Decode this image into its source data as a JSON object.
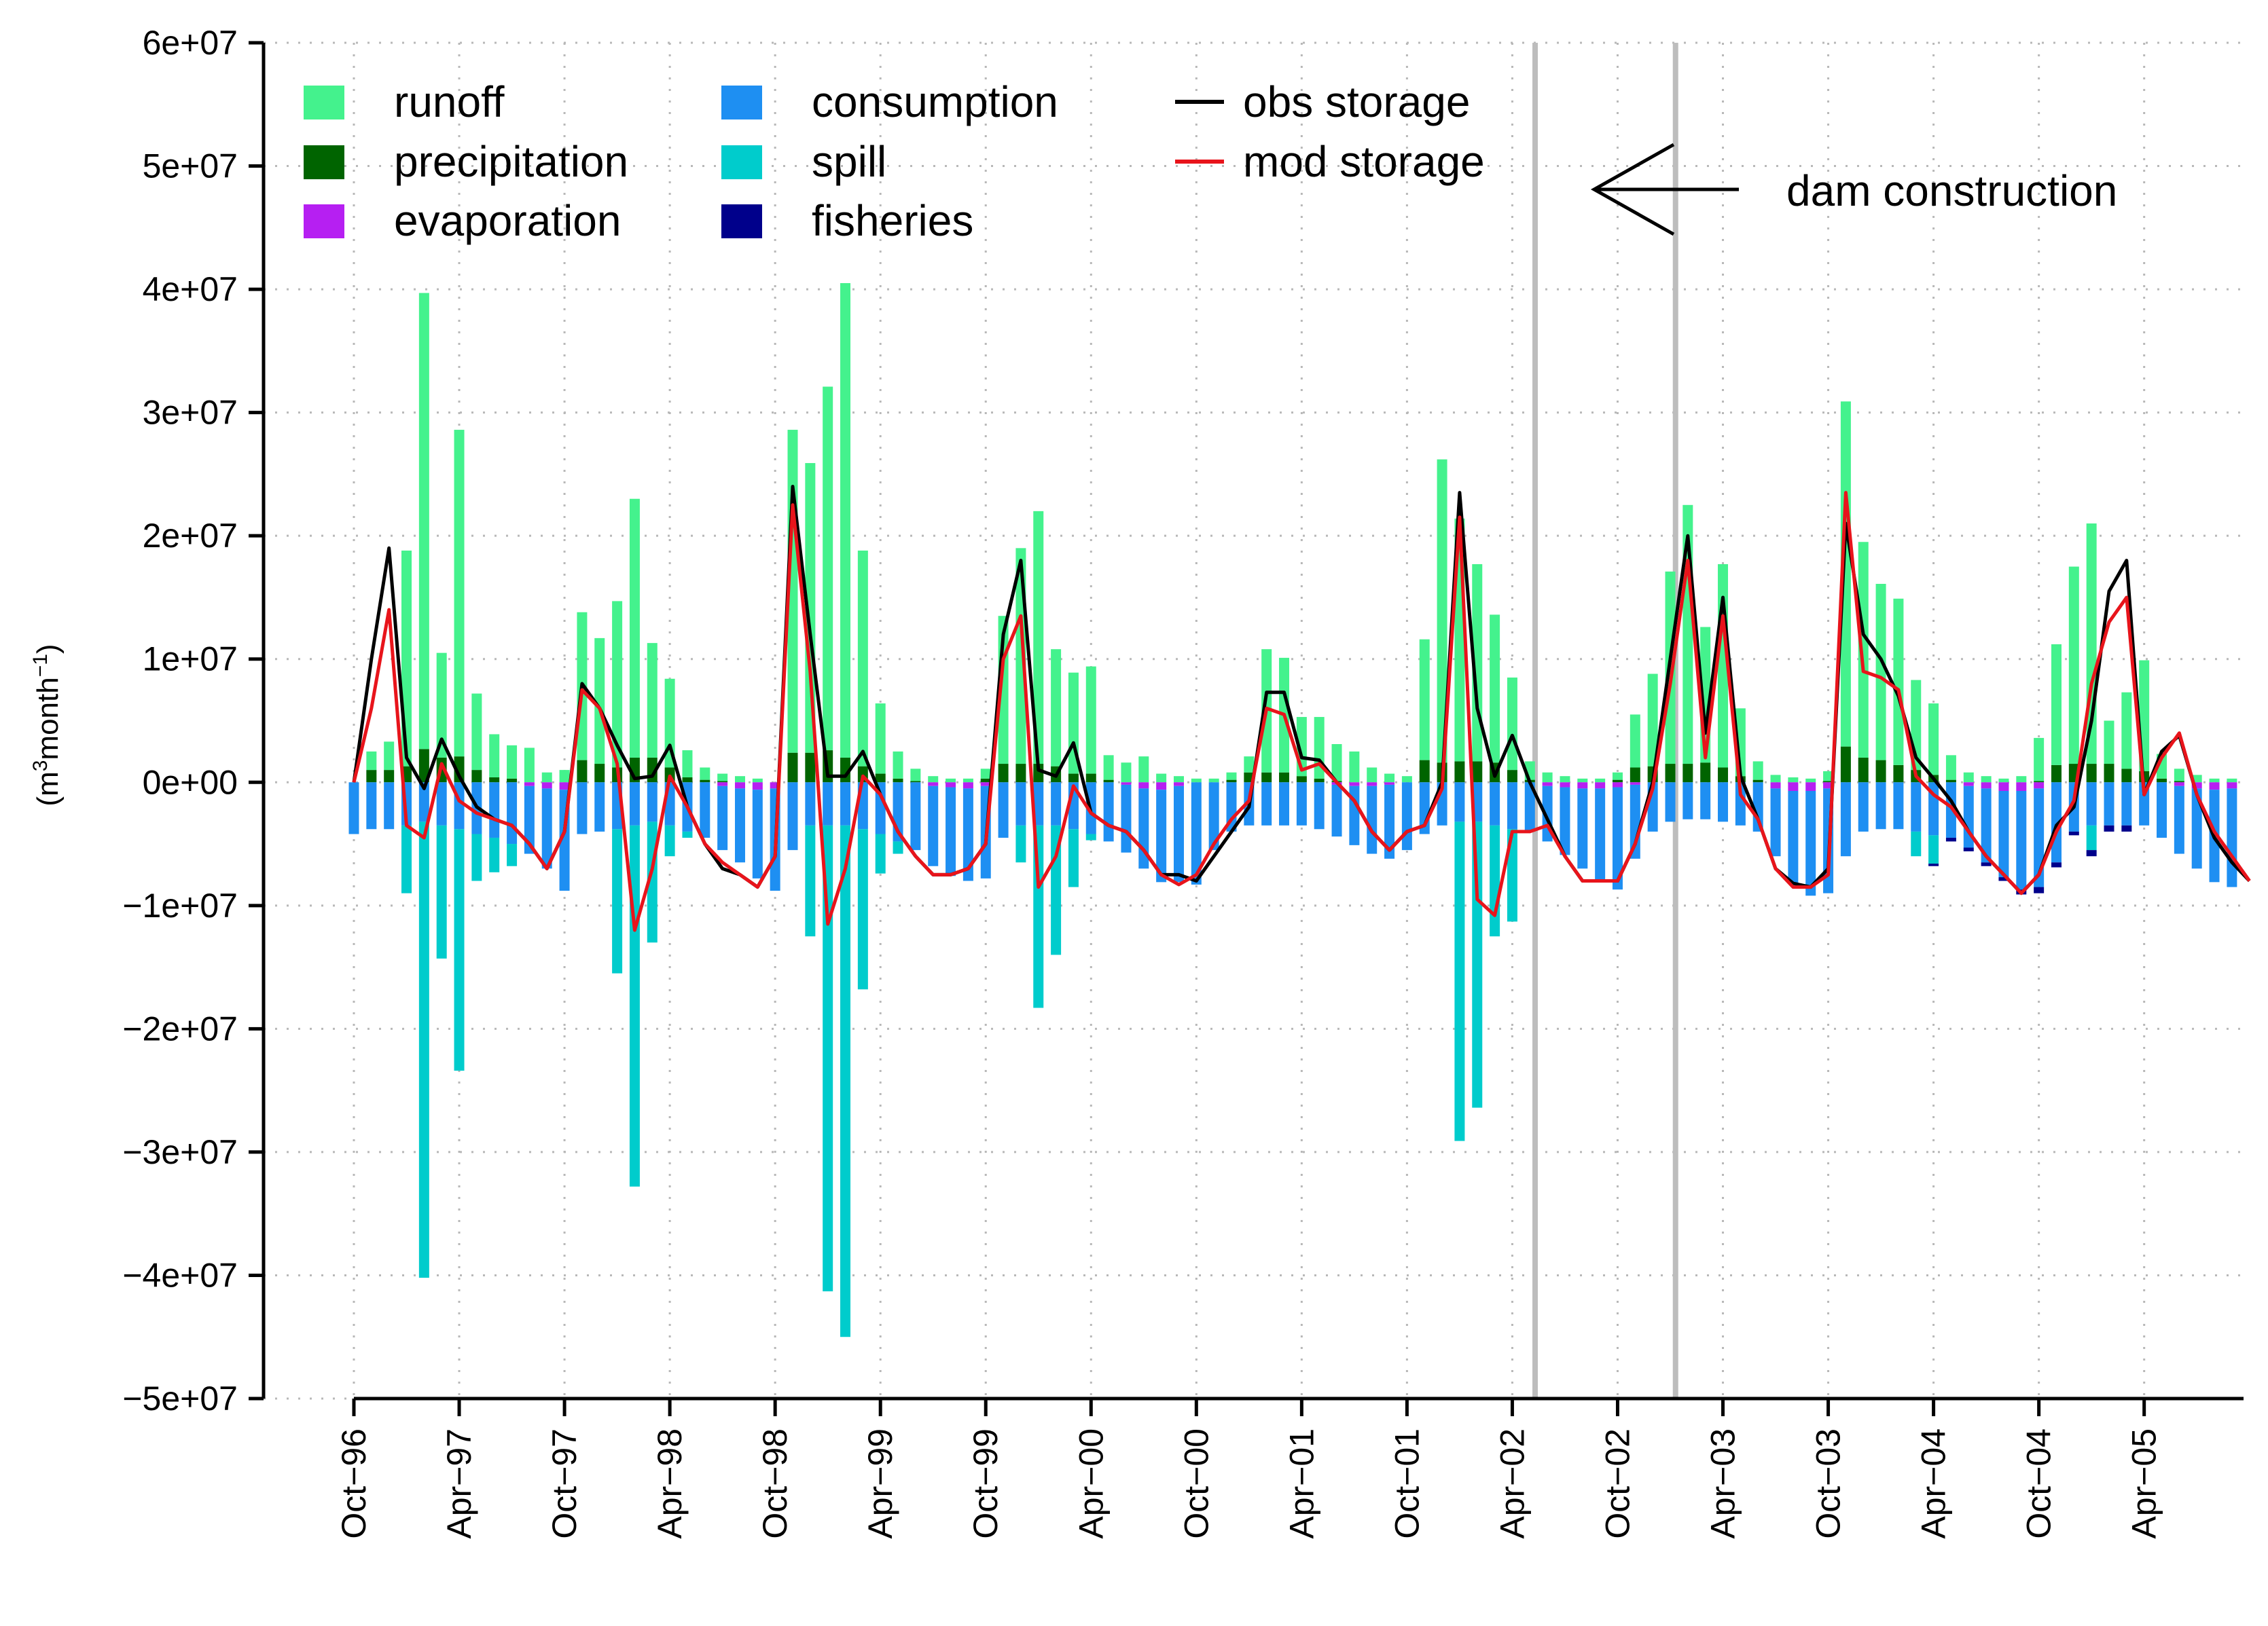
{
  "chart_data": {
    "type": "bar",
    "subtype": "stacked-bar-with-lines",
    "ylabel": "(m³month⁻¹)",
    "ylabel_parts": {
      "open": "(m",
      "sup1": "3",
      "mid": "month",
      "sup2": "−1",
      "close": ")"
    },
    "ylim": [
      -50000000,
      60000000
    ],
    "yticks": [
      {
        "value": 60000000,
        "label": "6e+07"
      },
      {
        "value": 50000000,
        "label": "5e+07"
      },
      {
        "value": 40000000,
        "label": "4e+07"
      },
      {
        "value": 30000000,
        "label": "3e+07"
      },
      {
        "value": 20000000,
        "label": "2e+07"
      },
      {
        "value": 10000000,
        "label": "1e+07"
      },
      {
        "value": 0,
        "label": "0e+00"
      },
      {
        "value": -10000000,
        "label": "−1e+07"
      },
      {
        "value": -20000000,
        "label": "−2e+07"
      },
      {
        "value": -30000000,
        "label": "−3e+07"
      },
      {
        "value": -40000000,
        "label": "−4e+07"
      },
      {
        "value": -50000000,
        "label": "−5e+07"
      }
    ],
    "xticks": [
      {
        "index": 0,
        "label": "Oct−96"
      },
      {
        "index": 6,
        "label": "Apr−97"
      },
      {
        "index": 12,
        "label": "Oct−97"
      },
      {
        "index": 18,
        "label": "Apr−98"
      },
      {
        "index": 24,
        "label": "Oct−98"
      },
      {
        "index": 30,
        "label": "Apr−99"
      },
      {
        "index": 36,
        "label": "Oct−99"
      },
      {
        "index": 42,
        "label": "Apr−00"
      },
      {
        "index": 48,
        "label": "Oct−00"
      },
      {
        "index": 54,
        "label": "Apr−01"
      },
      {
        "index": 60,
        "label": "Oct−01"
      },
      {
        "index": 66,
        "label": "Apr−02"
      },
      {
        "index": 72,
        "label": "Oct−02"
      },
      {
        "index": 78,
        "label": "Apr−03"
      },
      {
        "index": 84,
        "label": "Oct−03"
      },
      {
        "index": 90,
        "label": "Apr−04"
      },
      {
        "index": 96,
        "label": "Oct−04"
      },
      {
        "index": 102,
        "label": "Apr−05"
      }
    ],
    "x_index_range": [
      0,
      107
    ],
    "grid": true,
    "legend_position": "top-left",
    "legend": [
      {
        "name": "runoff",
        "color": "#44F28D",
        "kind": "box"
      },
      {
        "name": "precipitation",
        "color": "#006400",
        "kind": "box"
      },
      {
        "name": "evaporation",
        "color": "#B61FF2",
        "kind": "box"
      },
      {
        "name": "consumption",
        "color": "#1E8FF2",
        "kind": "box"
      },
      {
        "name": "spill",
        "color": "#00CCCC",
        "kind": "box"
      },
      {
        "name": "fisheries",
        "color": "#00008B",
        "kind": "box"
      },
      {
        "name": "obs storage",
        "color": "#000000",
        "kind": "line"
      },
      {
        "name": "mod storage",
        "color": "#E8141B",
        "kind": "line"
      }
    ],
    "annotation": {
      "text": "dam construction",
      "marker_indices": [
        67,
        75
      ]
    },
    "series": [
      {
        "name": "runoff",
        "values": [
          0,
          1.5,
          2.3,
          17.5,
          37,
          8.5,
          26.5,
          6.2,
          3.5,
          2.7,
          2.8,
          0.8,
          1,
          12,
          10.2,
          13.5,
          21,
          9.3,
          7.2,
          2.2,
          1,
          0.6,
          0.5,
          0.3,
          0,
          26.2,
          23.5,
          29.5,
          38.5,
          17.5,
          5.7,
          2.2,
          1,
          0.5,
          0.3,
          0.3,
          0.8,
          12,
          17.5,
          20.5,
          9.5,
          8.2,
          8.7,
          2,
          1.6,
          2.1,
          0.7,
          0.5,
          0.3,
          0.3,
          0.6,
          1.3,
          10,
          9.3,
          4.8,
          5,
          3,
          2.5,
          1.2,
          0.7,
          0.5,
          9.8,
          24.6,
          19.7,
          16,
          12,
          7.5,
          1.5,
          0.8,
          0.5,
          0.3,
          0.3,
          0.6,
          4.3,
          7.5,
          15.6,
          21,
          11,
          16.5,
          5.5,
          1.5,
          0.6,
          0.4,
          0.3,
          0.8,
          28,
          17.5,
          14.3,
          13.5,
          7.3,
          5.8,
          2,
          0.8,
          0.5,
          0.3,
          0.5,
          3.5,
          9.8,
          16,
          19.5,
          3.5,
          6.2,
          9,
          2,
          1,
          0.6,
          0.3,
          0.3
        ]
      },
      {
        "name": "precipitation",
        "values": [
          0,
          1,
          1,
          1.3,
          2.7,
          2,
          2.1,
          1,
          0.4,
          0.3,
          0,
          0,
          0,
          1.8,
          1.5,
          1.2,
          2,
          2,
          1.2,
          0.4,
          0.2,
          0.1,
          0,
          0,
          0,
          2.4,
          2.4,
          2.6,
          2,
          1.3,
          0.7,
          0.3,
          0.1,
          0,
          0,
          0,
          0.3,
          1.5,
          1.5,
          1.5,
          1.3,
          0.7,
          0.7,
          0.2,
          0,
          0,
          0,
          0,
          0,
          0,
          0.2,
          0.8,
          0.8,
          0.8,
          0.5,
          0.3,
          0.1,
          0,
          0,
          0,
          0,
          1.8,
          1.6,
          1.7,
          1.7,
          1.6,
          1,
          0.2,
          0,
          0,
          0,
          0,
          0.2,
          1.2,
          1.3,
          1.5,
          1.5,
          1.6,
          1.2,
          0.5,
          0.2,
          0,
          0,
          0,
          0.1,
          2.9,
          2,
          1.8,
          1.4,
          1,
          0.6,
          0.2,
          0,
          0,
          0,
          0,
          0.1,
          1.4,
          1.5,
          1.5,
          1.5,
          1.1,
          0.9,
          0.3,
          0.1,
          0,
          0,
          0
        ]
      },
      {
        "name": "consumption",
        "values": [
          -4.2,
          -3.8,
          -3.8,
          -3.5,
          -3.2,
          -3.5,
          -3.8,
          -4.2,
          -4.5,
          -5,
          -5.5,
          -6.5,
          -8.2,
          -4.2,
          -4,
          -3.8,
          -3.5,
          -3.2,
          -3.5,
          -4,
          -4.5,
          -5.2,
          -6,
          -7.2,
          -8.3,
          -5.5,
          -3.5,
          -3.5,
          -3.5,
          -3.8,
          -4.2,
          -4.8,
          -5.5,
          -6.5,
          -7.2,
          -7.5,
          -7.5,
          -4.5,
          -3.5,
          -3.5,
          -3.5,
          -3.8,
          -4.2,
          -4.8,
          -5.5,
          -6.5,
          -7.5,
          -7.8,
          -8.3,
          -5.5,
          -4,
          -3.5,
          -3.5,
          -3.5,
          -3.5,
          -3.8,
          -4.2,
          -4.8,
          -5.5,
          -6,
          -5.5,
          -4.2,
          -3.5,
          -3.2,
          -3.2,
          -3.5,
          -3.8,
          -4,
          -4.5,
          -5.5,
          -6.5,
          -7.5,
          -8.3,
          -6,
          -4,
          -3.2,
          -3,
          -3,
          -3.2,
          -3.5,
          -4,
          -5.5,
          -7.5,
          -8.5,
          -8.5,
          -6,
          -4,
          -3.8,
          -3.8,
          -4,
          -4.3,
          -4.5,
          -5,
          -6,
          -7,
          -8,
          -8,
          -6.5,
          -4,
          -3.5,
          -3.5,
          -3.5,
          -3.5,
          -4.5,
          -5.5,
          -6.5,
          -7.5,
          -8
        ]
      },
      {
        "name": "evaporation",
        "values": [
          0,
          0,
          0,
          0,
          0,
          0,
          0,
          0,
          0,
          0,
          -0.3,
          -0.5,
          -0.6,
          0,
          0,
          0,
          0,
          0,
          0,
          0,
          0,
          -0.3,
          -0.5,
          -0.6,
          -0.5,
          0,
          0,
          0,
          0,
          0,
          0,
          0,
          0,
          -0.3,
          -0.4,
          -0.5,
          -0.3,
          0,
          0,
          0,
          0,
          0,
          0,
          0,
          -0.2,
          -0.5,
          -0.6,
          -0.3,
          0,
          0,
          0,
          0,
          0,
          0,
          0,
          0,
          -0.2,
          -0.3,
          -0.3,
          -0.2,
          0,
          0,
          0,
          0,
          0,
          0,
          0,
          0,
          -0.3,
          -0.4,
          -0.5,
          -0.5,
          -0.4,
          -0.2,
          0,
          0,
          0,
          0,
          0,
          0,
          0,
          -0.5,
          -0.7,
          -0.7,
          -0.5,
          0,
          0,
          0,
          0,
          0,
          0,
          0,
          -0.3,
          -0.5,
          -0.7,
          -0.7,
          -0.5,
          0,
          0,
          0,
          0,
          0,
          0,
          0,
          -0.3,
          -0.5,
          -0.6,
          -0.5
        ]
      },
      {
        "name": "spill",
        "values": [
          0,
          0,
          0,
          -5.5,
          -37,
          -10.8,
          -19.6,
          -3.8,
          -2.8,
          -1.8,
          0,
          0,
          0,
          0,
          0,
          -11.7,
          -29.3,
          -9.8,
          -2.5,
          -0.5,
          0,
          0,
          0,
          0,
          0,
          0,
          -9,
          -37.8,
          -41.5,
          -13,
          -3.2,
          -1,
          0,
          0,
          0,
          0,
          0,
          0,
          -3,
          -14.8,
          -10.5,
          -4.7,
          -0.5,
          0,
          0,
          0,
          0,
          0,
          0,
          0,
          0,
          0,
          0,
          0,
          0,
          0,
          0,
          0,
          0,
          0,
          0,
          0,
          0,
          -25.9,
          -23.2,
          -9,
          -7.5,
          0,
          0,
          0,
          0,
          0,
          0,
          0,
          0,
          0,
          0,
          0,
          0,
          0,
          0,
          0,
          0,
          0,
          0,
          0,
          0,
          0,
          0,
          -2,
          -2.3,
          0,
          0,
          0,
          0,
          0,
          0,
          0,
          0,
          -2,
          0,
          0,
          0,
          0,
          0,
          0,
          0,
          0
        ]
      },
      {
        "name": "fisheries",
        "values": [
          0,
          0,
          0,
          0,
          0,
          0,
          0,
          0,
          0,
          0,
          0,
          0,
          0,
          0,
          0,
          0,
          0,
          0,
          0,
          0,
          0,
          0,
          0,
          0,
          0,
          0,
          0,
          0,
          0,
          0,
          0,
          0,
          0,
          0,
          0,
          0,
          0,
          0,
          0,
          0,
          0,
          0,
          0,
          0,
          0,
          0,
          0,
          0,
          0,
          0,
          0,
          0,
          0,
          0,
          0,
          0,
          0,
          0,
          0,
          0,
          0,
          0,
          0,
          0,
          0,
          0,
          0,
          0,
          0,
          0,
          0,
          0,
          0,
          0,
          0,
          0,
          0,
          0,
          0,
          0,
          0,
          0,
          0,
          0,
          0,
          0,
          0,
          0,
          0,
          0,
          -0.2,
          -0.3,
          -0.3,
          -0.3,
          -0.3,
          -0.4,
          -0.5,
          -0.4,
          -0.3,
          -0.5,
          -0.5,
          -0.5,
          0,
          0,
          0,
          0,
          0,
          0
        ]
      },
      {
        "name": "obs storage",
        "values": [
          0,
          10,
          19,
          2,
          -0.5,
          3.5,
          0.5,
          -2,
          -3,
          -3.5,
          -5,
          -7,
          -4,
          8,
          6,
          3,
          0.3,
          0.5,
          3,
          -2,
          -5,
          -7,
          -7.5,
          -8.5,
          -6,
          24,
          12,
          0.5,
          0.5,
          2.5,
          -1,
          -4,
          -6,
          -7.5,
          -7.5,
          -7,
          -5,
          12,
          18,
          1,
          0.5,
          3.2,
          -2.5,
          -3.5,
          -4,
          -5.5,
          -7.5,
          -7.5,
          -8,
          -6,
          -4,
          -2,
          7.3,
          7.3,
          2,
          1.8,
          0,
          -1.5,
          -4,
          -5.5,
          -4,
          -3.5,
          0,
          23.5,
          6,
          0.5,
          3.8,
          0,
          -3,
          -6,
          -8,
          -8,
          -8,
          -5,
          0,
          10,
          20,
          4,
          15,
          0.5,
          -3,
          -7,
          -8.2,
          -8.5,
          -7,
          21,
          12,
          10,
          7,
          2,
          0.3,
          -1.5,
          -4,
          -6,
          -7.5,
          -9,
          -7.5,
          -3.5,
          -2,
          5,
          15.5,
          18,
          -1,
          2.5,
          3.8,
          -1,
          -4.5,
          -6.5,
          -8
        ]
      },
      {
        "name": "mod storage",
        "values": [
          0,
          6,
          14,
          -3.5,
          -4.5,
          1.5,
          -1.5,
          -2.5,
          -3,
          -3.5,
          -5,
          -7,
          -4,
          7.5,
          6,
          1.5,
          -12,
          -7,
          0.5,
          -2,
          -5,
          -6.5,
          -7.5,
          -8.5,
          -6,
          22.5,
          9,
          -11.5,
          -7,
          0.5,
          -1,
          -4,
          -6,
          -7.5,
          -7.5,
          -7,
          -5,
          10,
          13.5,
          -8.5,
          -6,
          -0.3,
          -2.5,
          -3.5,
          -4,
          -5.5,
          -7.5,
          -8.3,
          -7.5,
          -5,
          -3,
          -1.5,
          6,
          5.5,
          1,
          1.5,
          0,
          -1.5,
          -4,
          -5.5,
          -4,
          -3.5,
          -0.5,
          21.5,
          -9.5,
          -10.8,
          -4,
          -4,
          -3.5,
          -6,
          -8,
          -8,
          -8,
          -5,
          -0.5,
          8,
          18,
          2,
          13.5,
          -1,
          -3,
          -7,
          -8.5,
          -8.5,
          -7.5,
          23.5,
          9,
          8.5,
          7.5,
          0.5,
          -1,
          -2,
          -4,
          -6,
          -7.5,
          -9,
          -7.5,
          -4,
          -1.5,
          8,
          13,
          15,
          -1,
          2,
          4,
          -1,
          -4,
          -6,
          -8
        ]
      }
    ]
  }
}
